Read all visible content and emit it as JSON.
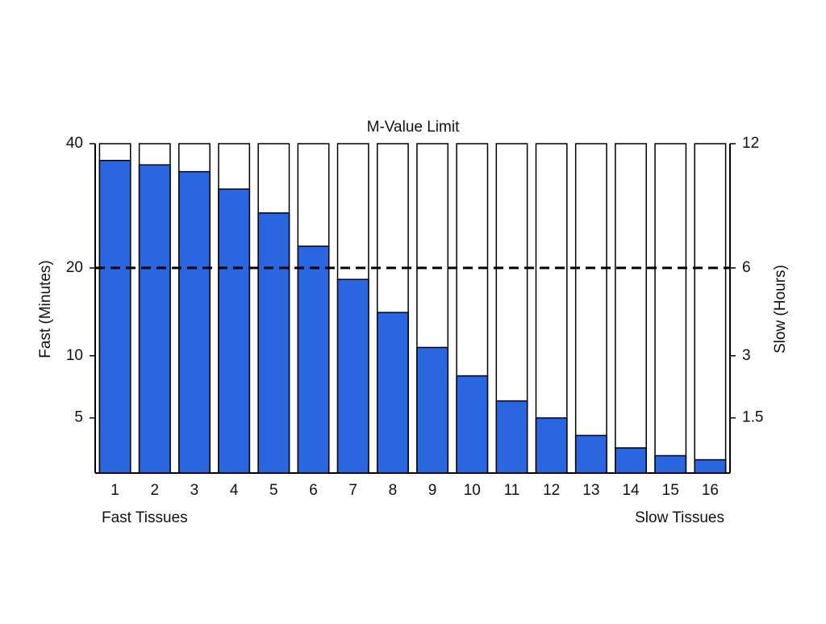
{
  "chart_data": {
    "type": "bar",
    "title": "M-Value Limit",
    "y_label": "Fast (Minutes)",
    "y2_label": "Slow (Hours)",
    "annotations": [
      "Fast Tissues",
      "Slow Tissues"
    ],
    "categories": [
      "1",
      "2",
      "3",
      "4",
      "5",
      "6",
      "7",
      "8",
      "9",
      "10",
      "11",
      "12",
      "13",
      "14",
      "15",
      "16"
    ],
    "values": [
      36.9,
      36.1,
      34.9,
      31.9,
      28.0,
      23.0,
      18.5,
      14.5,
      10.8,
      8.2,
      6.2,
      5.0,
      3.9,
      3.2,
      2.8,
      2.6
    ],
    "color": "#2a66e0",
    "scale": "sqrt",
    "ylim": [
      2,
      40
    ],
    "yticks": [
      5,
      10,
      20,
      40
    ],
    "y2lim": [
      0.6,
      12
    ],
    "y2ticks": [
      1.5,
      3,
      6,
      12
    ],
    "threshold": 20
  }
}
